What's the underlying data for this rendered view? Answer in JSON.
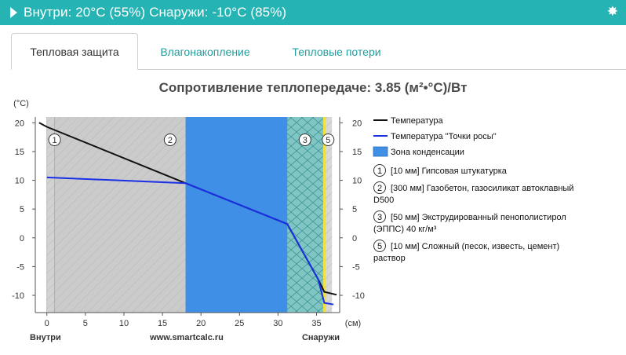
{
  "header": {
    "title": "Внутри: 20°C (55%) Снаружи: -10°C (85%)",
    "arrow_icon": "caret-right-icon",
    "gear_icon": "gear-icon"
  },
  "tabs": [
    {
      "label": "Тепловая защита",
      "active": true
    },
    {
      "label": "Влагонакопление",
      "active": false
    },
    {
      "label": "Тепловые потери",
      "active": false
    }
  ],
  "colors": {
    "accent": "#26b3b3",
    "temperature": "#111111",
    "dew_point": "#1a2fe6",
    "condensation": "#3f8fe6"
  },
  "chart_data": {
    "type": "line",
    "title": "Сопротивление теплопередаче: 3.85 (м²•°С)/Вт",
    "ylabel": "(°C)",
    "xlabel": "(см)",
    "xlim": [
      -1.5,
      38
    ],
    "ylim": [
      -13,
      21
    ],
    "x_ticks": [
      0,
      5,
      10,
      15,
      20,
      25,
      30,
      35
    ],
    "y_ticks": [
      20,
      15,
      10,
      5,
      0,
      -5,
      -10
    ],
    "bottom_labels": {
      "left": "Внутри",
      "center": "www.smartcalc.ru",
      "right": "Снаружи"
    },
    "layers": [
      {
        "num": "1",
        "from": 0,
        "to": 1,
        "fill": "#d2d2d2",
        "label": "[10 мм] Гипсовая штукатурка"
      },
      {
        "num": "2",
        "from": 1,
        "to": 31,
        "fill": "#cbcbcb",
        "label": "[300 мм] Газобетон, газосиликат автоклавный D500"
      },
      {
        "num": "3",
        "from": 31,
        "to": 36,
        "fill": "#7fc6c4",
        "label": "[50 мм] Экструдированный пенополистирол (ЭППС) 40 кг/м³"
      },
      {
        "num": "5",
        "from": 36,
        "to": 37,
        "fill": "#d8d8d8",
        "label": "[10 мм] Сложный (песок, известь, цемент) раствор"
      }
    ],
    "condensation_zone": [
      18,
      31.2
    ],
    "series": [
      {
        "name": "Температура",
        "x": [
          -1,
          0,
          18,
          31.2,
          35.2,
          36,
          37.6
        ],
        "y": [
          20,
          19.3,
          9.5,
          2.4,
          -7.2,
          -9.4,
          -9.9
        ]
      },
      {
        "name": "Температура \"Точки росы\"",
        "x": [
          0,
          18,
          31.2,
          35.2,
          36,
          37.2
        ],
        "y": [
          10.5,
          9.5,
          2.4,
          -7.2,
          -11.3,
          -11.6
        ]
      }
    ],
    "legend": [
      {
        "label": "Температура",
        "kind": "line",
        "color": "#111111"
      },
      {
        "label": "Температура \"Точки росы\"",
        "kind": "line",
        "color": "#1a2fe6"
      },
      {
        "label": "Зона конденсации",
        "kind": "box",
        "color": "#3f8fe6"
      }
    ],
    "legend_position": "right",
    "grid": false
  }
}
